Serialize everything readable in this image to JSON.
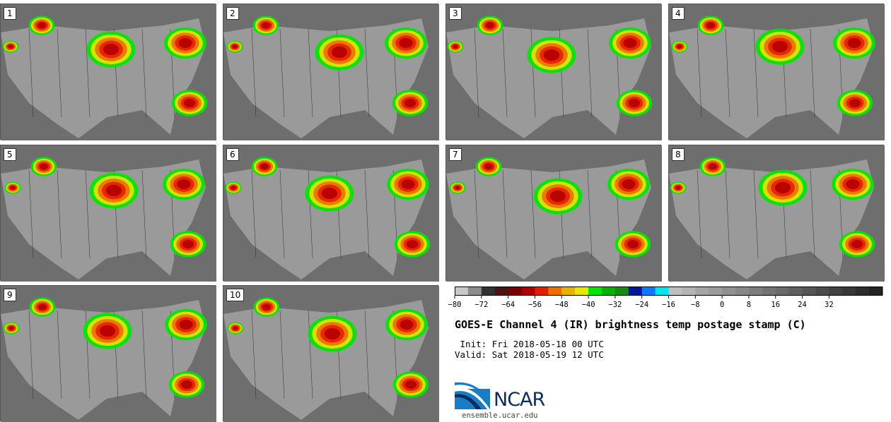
{
  "panels": [
    {
      "label": "1"
    },
    {
      "label": "2"
    },
    {
      "label": "3"
    },
    {
      "label": "4"
    },
    {
      "label": "5"
    },
    {
      "label": "6"
    },
    {
      "label": "7"
    },
    {
      "label": "8"
    },
    {
      "label": "9"
    },
    {
      "label": "10"
    }
  ],
  "colorbar": {
    "colors": [
      "#c8c8c8",
      "#8c8c8c",
      "#323232",
      "#4b1414",
      "#780000",
      "#b40000",
      "#e61e00",
      "#f06e00",
      "#e6b400",
      "#e6e600",
      "#00e600",
      "#00b400",
      "#148c14",
      "#0014a0",
      "#0a78ff",
      "#00e6f0",
      "#bebebe",
      "#b4b4b4",
      "#a5a5a5",
      "#9b9b9b",
      "#919191",
      "#878787",
      "#7d7d7d",
      "#737373",
      "#696969",
      "#5f5f5f",
      "#555555",
      "#4b4b4b",
      "#414141",
      "#373737",
      "#2d2d2d",
      "#232323"
    ],
    "tick_labels": [
      "−80",
      "−72",
      "−64",
      "−56",
      "−48",
      "−40",
      "−32",
      "−24",
      "−16",
      "−8",
      "0",
      "8",
      "16",
      "24",
      "32"
    ]
  },
  "title": "GOES-E Channel 4 (IR) brightness temp postage stamp (C)",
  "init_line": " Init: Fri 2018-05-18 00 UTC",
  "valid_line": "Valid: Sat 2018-05-19 12 UTC",
  "logo_text": "NCAR",
  "url": "ensemble.ucar.edu"
}
